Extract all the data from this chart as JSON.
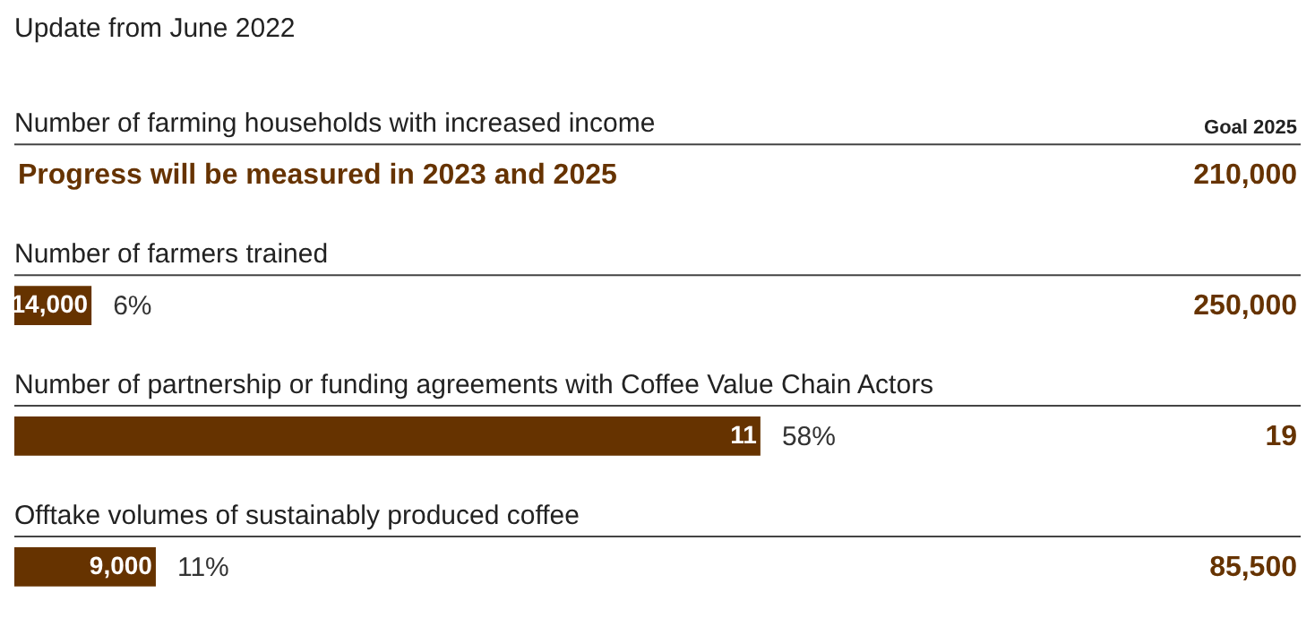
{
  "chart_data": {
    "type": "bar",
    "orientation": "horizontal",
    "title": "Update from June 2022",
    "categories": [
      "Number of farming households with increased income",
      "Number of farmers trained",
      "Number of partnership or funding agreements with Coffee Value Chain Actors",
      "Offtake volumes of sustainably produced coffee"
    ],
    "series": [
      {
        "color": "#663300",
        "values": [
          null,
          6,
          58,
          11
        ],
        "value_labels": [
          null,
          "6%",
          "58%",
          "11%"
        ]
      }
    ],
    "xlim": [
      0,
      100
    ],
    "tick_labels": "y",
    "annotations": [
      "Progress will be measured in 2023 and 2025",
      "Goal 2025",
      "210,000",
      "250,000",
      "19",
      "85,500",
      {
        "text": "14,000",
        "x": 6,
        "y": "Number of farmers trained"
      },
      {
        "text": "11",
        "x": 58,
        "y": "Number of partnership or funding agreements with Coffee Value Chain Actors"
      },
      {
        "text": "9,000",
        "x": 11,
        "y": "Offtake volumes of sustainably produced coffee"
      }
    ]
  }
}
